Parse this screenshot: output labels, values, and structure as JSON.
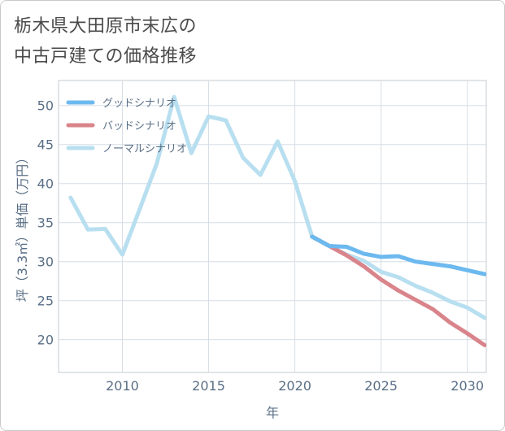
{
  "title_lines": [
    "栃木県大田原市末広の",
    "中古戸建ての価格推移"
  ],
  "chart_data": {
    "type": "line",
    "title": "栃木県大田原市末広の中古戸建ての価格推移",
    "xlabel": "年",
    "ylabel": "坪（3.3㎡）単価（万円）",
    "xlim": [
      2006.3,
      2031.1
    ],
    "ylim": [
      15.8,
      53.2
    ],
    "xticks": [
      2010,
      2015,
      2020,
      2025,
      2030
    ],
    "yticks": [
      20,
      25,
      30,
      35,
      40,
      45,
      50
    ],
    "grid": true,
    "legend_position": "top-left",
    "series": [
      {
        "name": "グッドシナリオ",
        "color": "#6cb9ef",
        "x": [
          2021,
          2022,
          2023,
          2024,
          2025,
          2026,
          2027,
          2028,
          2029,
          2030,
          2031
        ],
        "y": [
          33.2,
          32.0,
          31.9,
          31.0,
          30.6,
          30.7,
          30.0,
          29.7,
          29.4,
          28.9,
          28.4
        ]
      },
      {
        "name": "バッドシナリオ",
        "color": "#d9848b",
        "x": [
          2021,
          2022,
          2023,
          2024,
          2025,
          2026,
          2027,
          2028,
          2029,
          2030,
          2031
        ],
        "y": [
          33.2,
          32.0,
          30.8,
          29.4,
          27.7,
          26.3,
          25.1,
          23.9,
          22.2,
          20.8,
          19.3
        ]
      },
      {
        "name": "ノーマルシナリオ",
        "color": "#b8dff0",
        "x": [
          2007,
          2008,
          2009,
          2010,
          2011,
          2012,
          2013,
          2014,
          2015,
          2016,
          2017,
          2018,
          2019,
          2020,
          2021,
          2022,
          2023,
          2024,
          2025,
          2026,
          2027,
          2028,
          2029,
          2030,
          2031
        ],
        "y": [
          38.2,
          34.1,
          34.2,
          30.9,
          36.7,
          42.6,
          51.1,
          43.9,
          48.6,
          48.1,
          43.3,
          41.1,
          45.4,
          40.3,
          33.2,
          32.0,
          30.9,
          30.1,
          28.7,
          28.0,
          26.9,
          26.0,
          24.9,
          24.1,
          22.8
        ]
      }
    ]
  }
}
